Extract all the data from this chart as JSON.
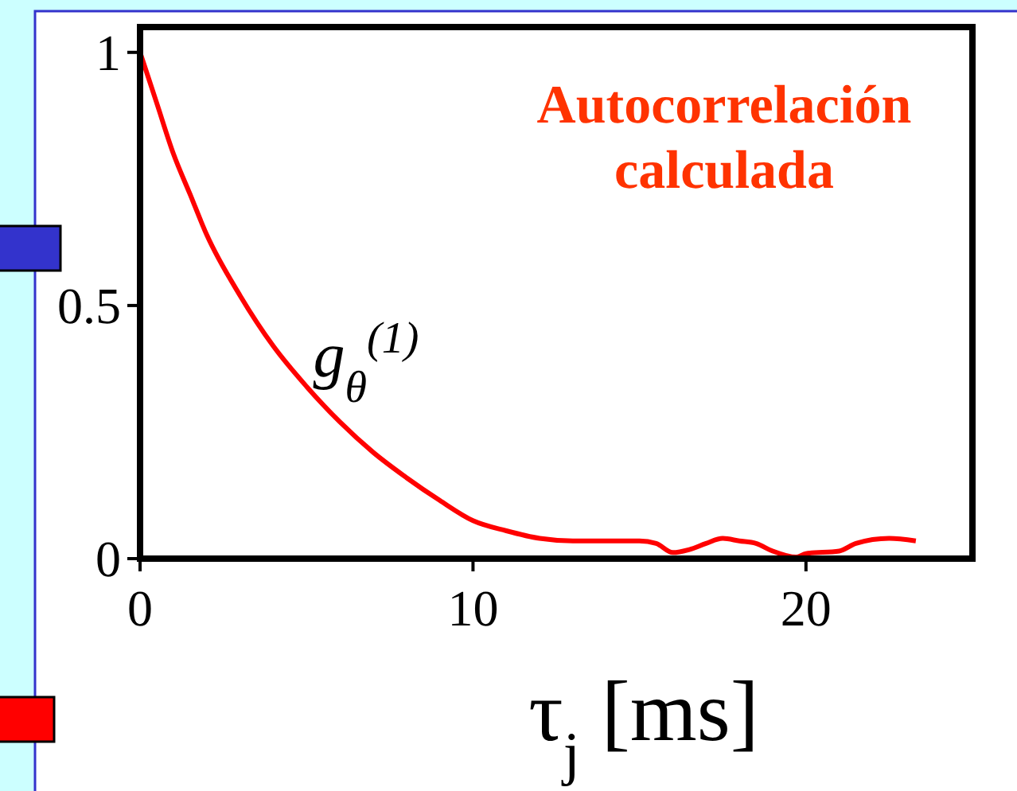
{
  "chart_data": {
    "type": "line",
    "annotations": [
      "Autocorrelación calculada"
    ],
    "xlabel": "τ$_{j}$ [ms]",
    "xlim": [
      0,
      25
    ],
    "xticks": [
      0,
      10,
      20
    ],
    "ylim": [
      0,
      1.05
    ],
    "yticks": [
      0,
      0.5,
      1
    ],
    "grid": false,
    "series": [
      {
        "name": "g$_{θ}$$^{(1)}$",
        "color": "#ff0000",
        "x": [
          0,
          0.5,
          1,
          1.5,
          2,
          3,
          4,
          5,
          6,
          7,
          8,
          9,
          10,
          11,
          12,
          13,
          14,
          15,
          15.5,
          16,
          16.5,
          17,
          17.5,
          18,
          18.5,
          19,
          19.7,
          20,
          21,
          21.5,
          22.5,
          23.3
        ],
        "values": [
          1.0,
          0.9,
          0.8,
          0.72,
          0.64,
          0.52,
          0.42,
          0.34,
          0.27,
          0.21,
          0.16,
          0.115,
          0.075,
          0.055,
          0.04,
          0.035,
          0.035,
          0.035,
          0.03,
          0.012,
          0.018,
          0.03,
          0.04,
          0.035,
          0.03,
          0.015,
          0.003,
          0.01,
          0.015,
          0.03,
          0.04,
          0.035
        ]
      }
    ]
  }
}
